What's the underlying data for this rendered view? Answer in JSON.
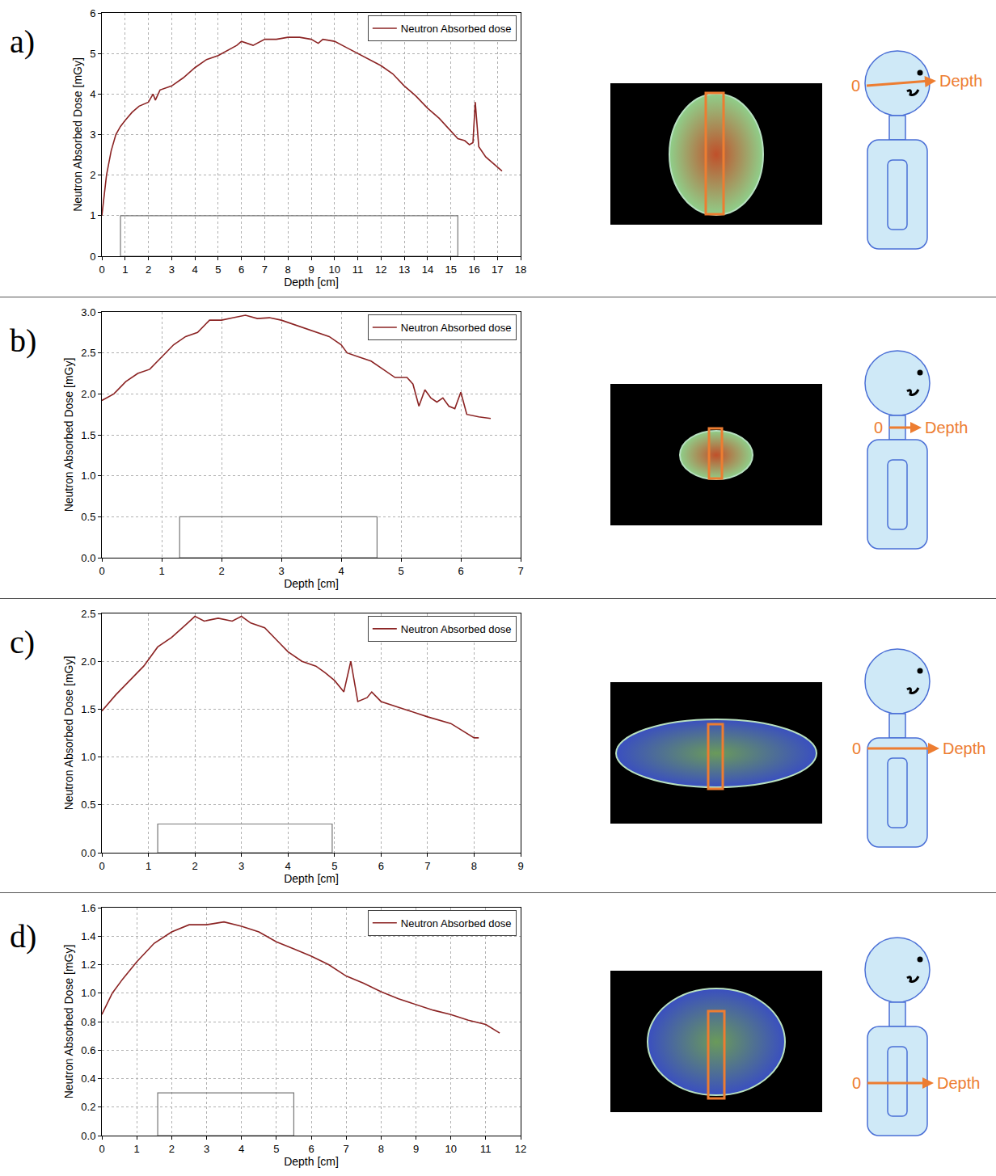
{
  "chart_data": [
    {
      "type": "line",
      "x_label": "Depth [cm]",
      "y_label": "Neutron Absorbed Dose [mGy]",
      "x": [
        0,
        0.2,
        0.4,
        0.6,
        0.8,
        1,
        1.3,
        1.6,
        2,
        2.2,
        2.3,
        2.5,
        3,
        3.5,
        4,
        4.5,
        5,
        5.5,
        5.8,
        6,
        6.5,
        7,
        7.5,
        8,
        8.5,
        9,
        9.3,
        9.5,
        10,
        10.5,
        11,
        11.5,
        12,
        12.5,
        13,
        13.5,
        14,
        14.5,
        15,
        15.3,
        15.6,
        15.8,
        15.95,
        16.05,
        16.2,
        16.5,
        17,
        17.2
      ],
      "series": [
        {
          "name": "Neutron Absorbed dose",
          "color": "#8b2323",
          "values": [
            1.0,
            2.0,
            2.6,
            3.0,
            3.2,
            3.35,
            3.55,
            3.7,
            3.8,
            4.0,
            3.85,
            4.1,
            4.2,
            4.4,
            4.65,
            4.85,
            4.95,
            5.1,
            5.2,
            5.3,
            5.2,
            5.35,
            5.35,
            5.4,
            5.4,
            5.35,
            5.25,
            5.35,
            5.3,
            5.15,
            5.0,
            4.85,
            4.7,
            4.5,
            4.2,
            3.95,
            3.65,
            3.4,
            3.1,
            2.9,
            2.85,
            2.75,
            2.8,
            3.8,
            2.7,
            2.45,
            2.2,
            2.1
          ]
        }
      ],
      "xlim": [
        0,
        18
      ],
      "ylim": [
        0,
        6
      ],
      "xticks": [
        0,
        1,
        2,
        3,
        4,
        5,
        6,
        7,
        8,
        9,
        10,
        11,
        12,
        13,
        14,
        15,
        16,
        17,
        18
      ],
      "yticks": [
        0,
        1,
        2,
        3,
        4,
        5,
        6
      ],
      "region": {
        "x0": 0.8,
        "x1": 15.3,
        "height": 1.0
      },
      "grid": true,
      "legend": "upper right"
    },
    {
      "type": "line",
      "x_label": "Depth [cm]",
      "y_label": "Neutron Absorbed Dose [mGy]",
      "x": [
        0,
        0.2,
        0.4,
        0.6,
        0.8,
        1,
        1.2,
        1.4,
        1.6,
        1.8,
        2,
        2.2,
        2.4,
        2.6,
        2.8,
        3,
        3.2,
        3.4,
        3.6,
        3.8,
        4,
        4.1,
        4.3,
        4.5,
        4.7,
        4.9,
        5.1,
        5.2,
        5.3,
        5.4,
        5.5,
        5.6,
        5.7,
        5.8,
        5.9,
        6.0,
        6.1,
        6.3,
        6.5
      ],
      "series": [
        {
          "name": "Neutron Absorbed dose",
          "color": "#8b2323",
          "values": [
            1.92,
            2.0,
            2.15,
            2.25,
            2.3,
            2.45,
            2.6,
            2.7,
            2.75,
            2.9,
            2.9,
            2.93,
            2.96,
            2.92,
            2.93,
            2.9,
            2.85,
            2.8,
            2.75,
            2.7,
            2.6,
            2.5,
            2.45,
            2.4,
            2.3,
            2.2,
            2.2,
            2.12,
            1.85,
            2.05,
            1.95,
            1.9,
            1.95,
            1.85,
            1.82,
            2.02,
            1.75,
            1.72,
            1.7
          ]
        }
      ],
      "xlim": [
        0,
        7
      ],
      "ylim": [
        0,
        3
      ],
      "xticks": [
        0,
        1,
        2,
        3,
        4,
        5,
        6,
        7
      ],
      "yticks": [
        {
          "value": 0,
          "label": "0.0"
        },
        0.5,
        {
          "value": 1,
          "label": "1.0"
        },
        1.5,
        {
          "value": 2,
          "label": "2.0"
        },
        2.5,
        {
          "value": 3,
          "label": "3.0"
        }
      ],
      "region": {
        "x0": 1.3,
        "x1": 4.6,
        "height": 0.5
      },
      "grid": true,
      "legend": "upper right"
    },
    {
      "type": "line",
      "x_label": "Depth [cm]",
      "y_label": "Neutron Absorbed Dose [mGy]",
      "x": [
        0,
        0.3,
        0.6,
        0.9,
        1.2,
        1.5,
        1.8,
        2,
        2.2,
        2.5,
        2.8,
        3,
        3.2,
        3.5,
        3.8,
        4,
        4.3,
        4.6,
        4.8,
        5,
        5.2,
        5.35,
        5.5,
        5.7,
        5.8,
        6,
        6.5,
        7,
        7.5,
        8,
        8.1
      ],
      "series": [
        {
          "name": "Neutron Absorbed dose",
          "color": "#8b2323",
          "values": [
            1.48,
            1.65,
            1.8,
            1.95,
            2.15,
            2.25,
            2.38,
            2.47,
            2.42,
            2.45,
            2.42,
            2.47,
            2.4,
            2.35,
            2.2,
            2.1,
            2.0,
            1.95,
            1.88,
            1.8,
            1.68,
            2.0,
            1.58,
            1.62,
            1.68,
            1.58,
            1.5,
            1.42,
            1.35,
            1.2,
            1.2
          ]
        }
      ],
      "xlim": [
        0,
        9
      ],
      "ylim": [
        0,
        2.5
      ],
      "xticks": [
        0,
        1,
        2,
        3,
        4,
        5,
        6,
        7,
        8,
        9
      ],
      "yticks": [
        {
          "value": 0,
          "label": "0.0"
        },
        0.5,
        {
          "value": 1,
          "label": "1.0"
        },
        1.5,
        {
          "value": 2,
          "label": "2.0"
        },
        2.5
      ],
      "region": {
        "x0": 1.2,
        "x1": 4.95,
        "height": 0.3
      },
      "grid": true,
      "legend": "upper right"
    },
    {
      "type": "line",
      "x_label": "Depth [cm]",
      "y_label": "Neutron Absorbed Dose [mGy]",
      "x": [
        0,
        0.3,
        0.6,
        1,
        1.5,
        1.8,
        2,
        2.5,
        3,
        3.5,
        4,
        4.5,
        5,
        5.5,
        6,
        6.5,
        7,
        7.5,
        8,
        8.5,
        9,
        9.5,
        10,
        10.5,
        11,
        11.4
      ],
      "series": [
        {
          "name": "Neutron Absorbed dose",
          "color": "#8b2323",
          "values": [
            0.85,
            1.0,
            1.1,
            1.22,
            1.35,
            1.4,
            1.43,
            1.48,
            1.48,
            1.5,
            1.47,
            1.43,
            1.36,
            1.31,
            1.26,
            1.2,
            1.12,
            1.07,
            1.01,
            0.96,
            0.92,
            0.88,
            0.85,
            0.81,
            0.78,
            0.72
          ]
        }
      ],
      "xlim": [
        0,
        12
      ],
      "ylim": [
        0,
        1.6
      ],
      "xticks": [
        0,
        1,
        2,
        3,
        4,
        5,
        6,
        7,
        8,
        9,
        10,
        11,
        12
      ],
      "yticks": [
        {
          "value": 0,
          "label": "0.0"
        },
        0.2,
        0.4,
        0.6,
        0.8,
        {
          "value": 1,
          "label": "1.0"
        },
        1.2,
        1.4,
        1.6
      ],
      "region": {
        "x0": 1.6,
        "x1": 5.5,
        "height": 0.3
      },
      "grid": true,
      "legend": "upper right"
    }
  ],
  "panels": [
    {
      "label": "a)",
      "depth_origin": "0",
      "depth_label": "Depth"
    },
    {
      "label": "b)",
      "depth_origin": "0",
      "depth_label": "Depth"
    },
    {
      "label": "c)",
      "depth_origin": "0",
      "depth_label": "Depth"
    },
    {
      "label": "d)",
      "depth_origin": "0",
      "depth_label": "Depth"
    }
  ]
}
